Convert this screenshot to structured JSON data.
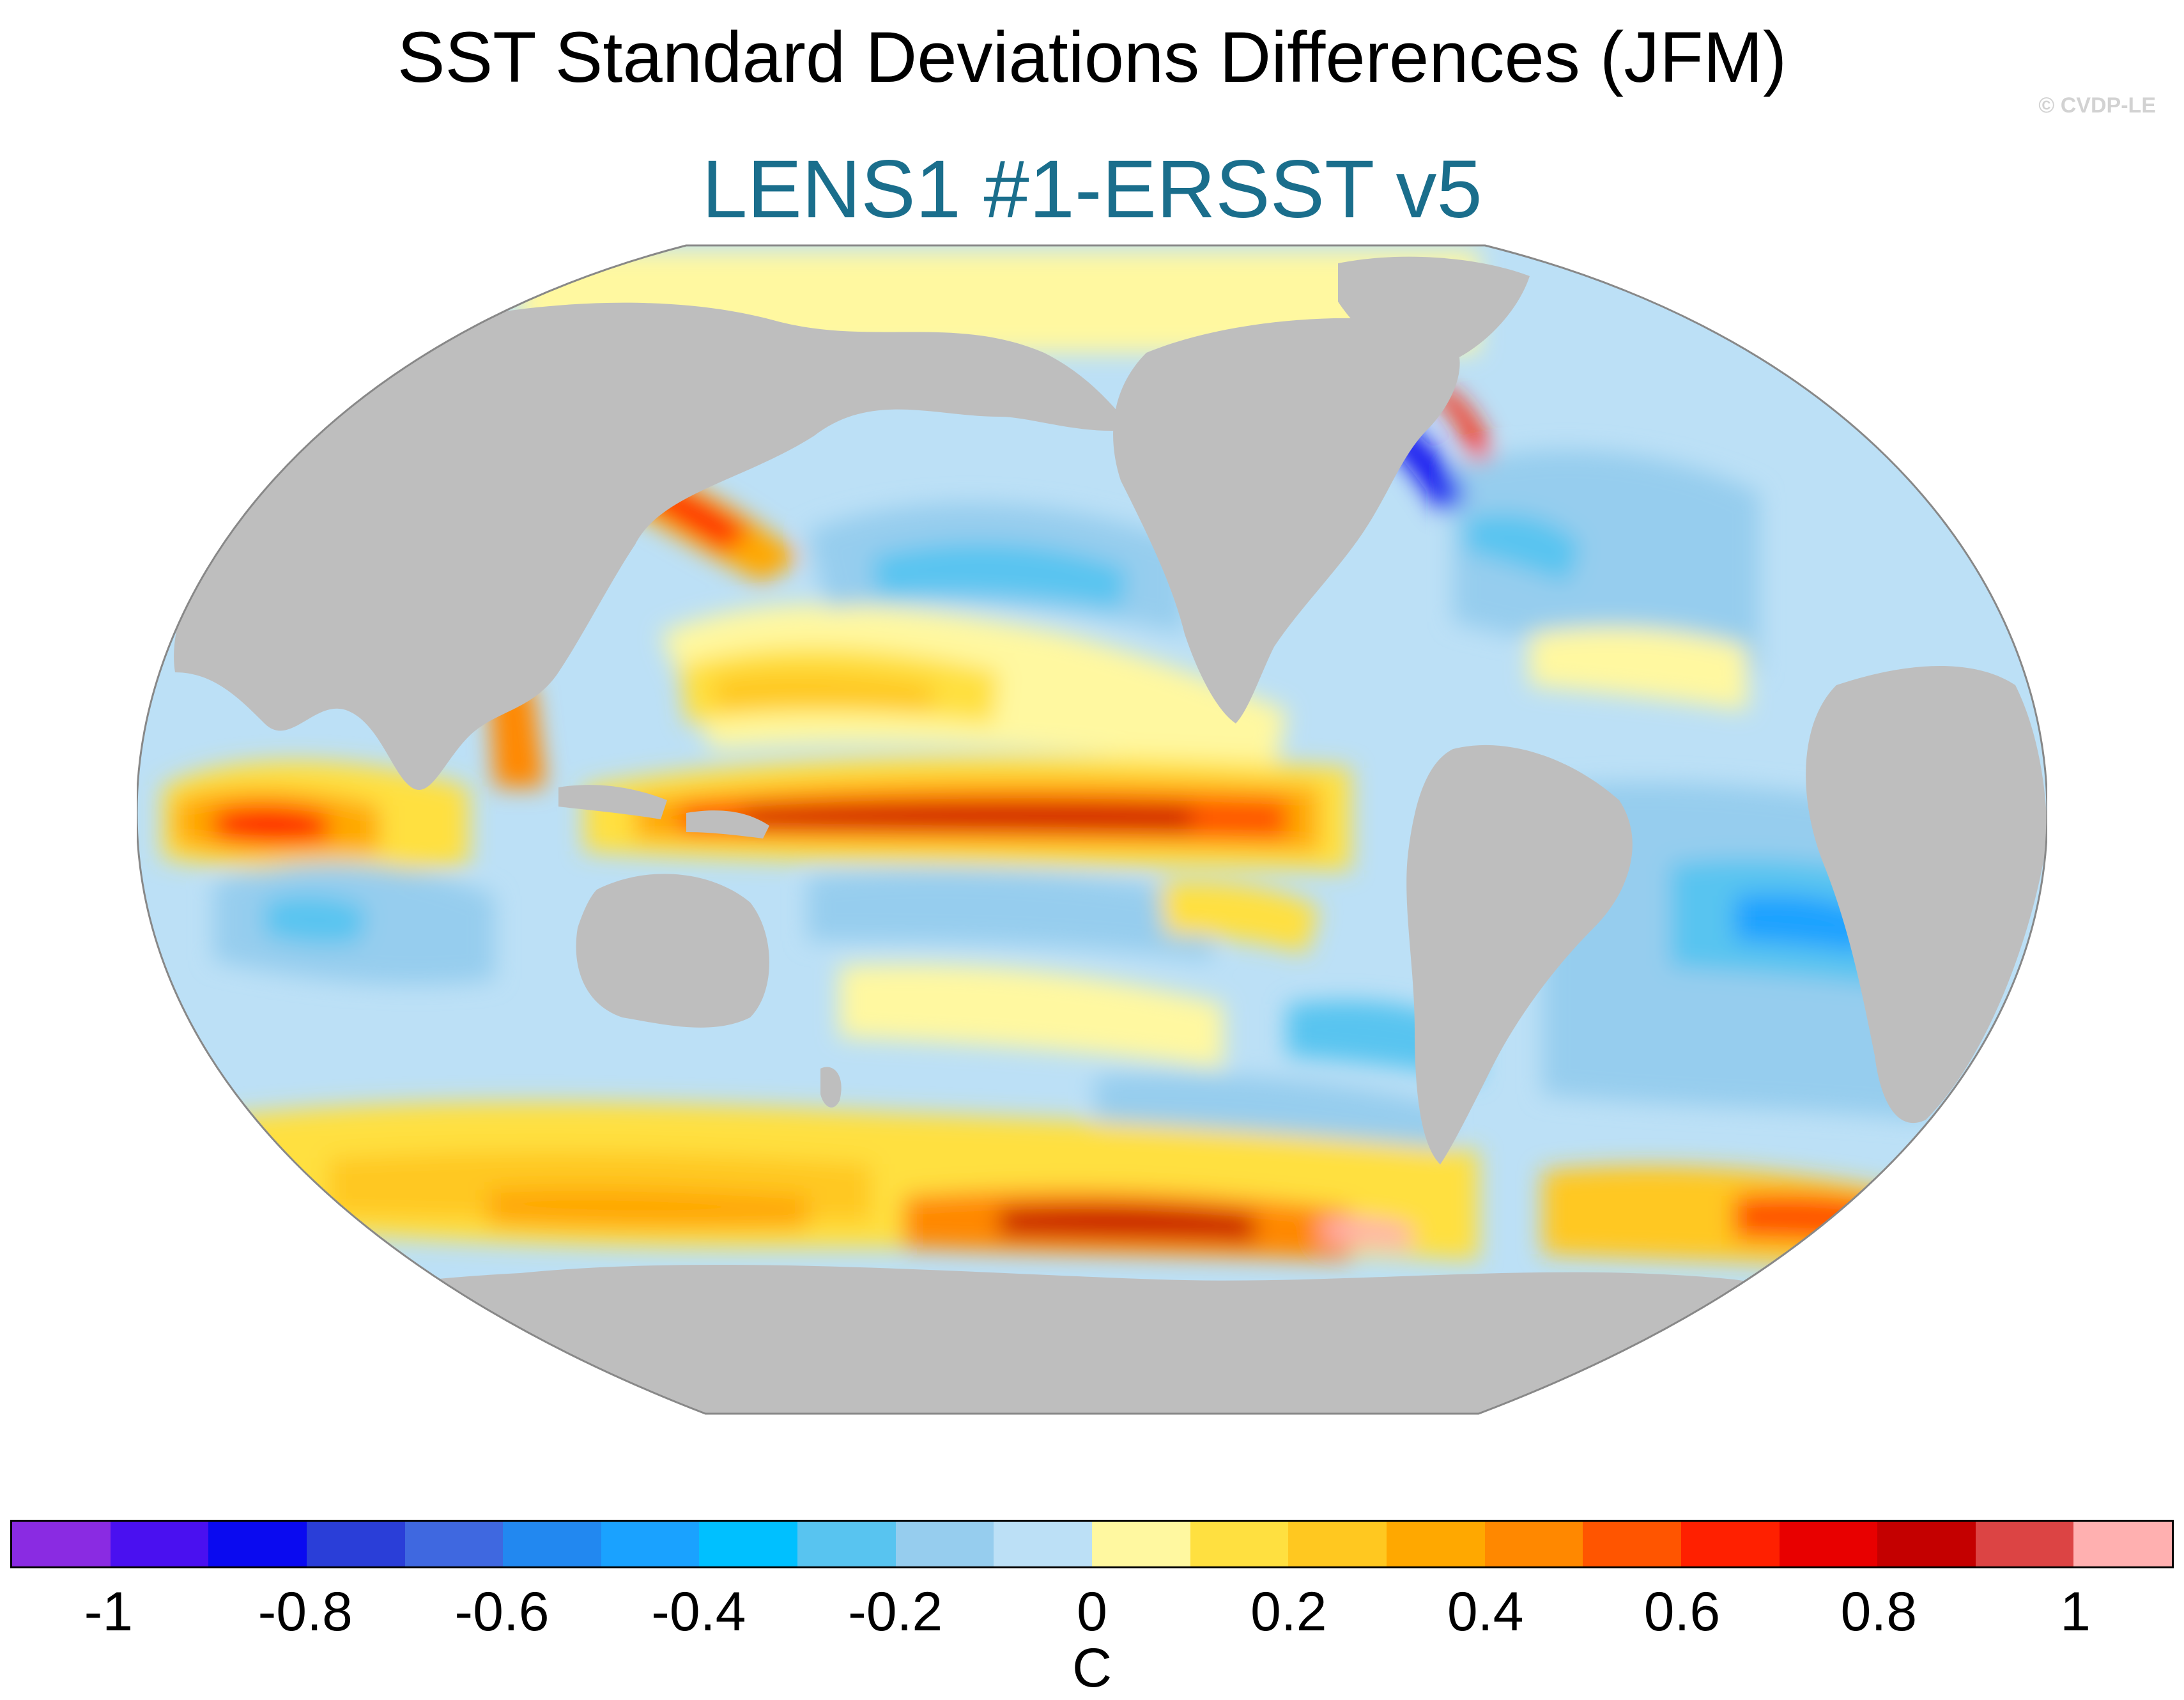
{
  "title": "SST Standard Deviations Differences (JFM)",
  "subtitle": "LENS1 #1-ERSST v5",
  "credit": "© CVDP-LE",
  "colors": {
    "subtitle": "#1a6e8c",
    "land": "#bebebe",
    "ocean_missing": "#ffffff",
    "outline": "#888888"
  },
  "colorbar": {
    "unit": "C",
    "colors": [
      "#8a2be2",
      "#4a10f0",
      "#0a0af0",
      "#2a3ed8",
      "#3f68e0",
      "#2288f0",
      "#1aa2ff",
      "#00c0ff",
      "#58c4f0",
      "#96cdee",
      "#bce0f6",
      "#fff8a0",
      "#ffe040",
      "#ffc820",
      "#ffa800",
      "#ff8800",
      "#ff5500",
      "#ff2000",
      "#e80000",
      "#c40000",
      "#dc4444",
      "#ffb0b0"
    ],
    "ticks": [
      "-1",
      "-0.8",
      "-0.6",
      "-0.4",
      "-0.2",
      "0",
      "0.2",
      "0.4",
      "0.6",
      "0.8",
      "1"
    ],
    "tick_values": [
      -1,
      -0.8,
      -0.6,
      -0.4,
      -0.2,
      0,
      0.2,
      0.4,
      0.6,
      0.8,
      1
    ],
    "min": -1.1,
    "max": 1.1
  }
}
